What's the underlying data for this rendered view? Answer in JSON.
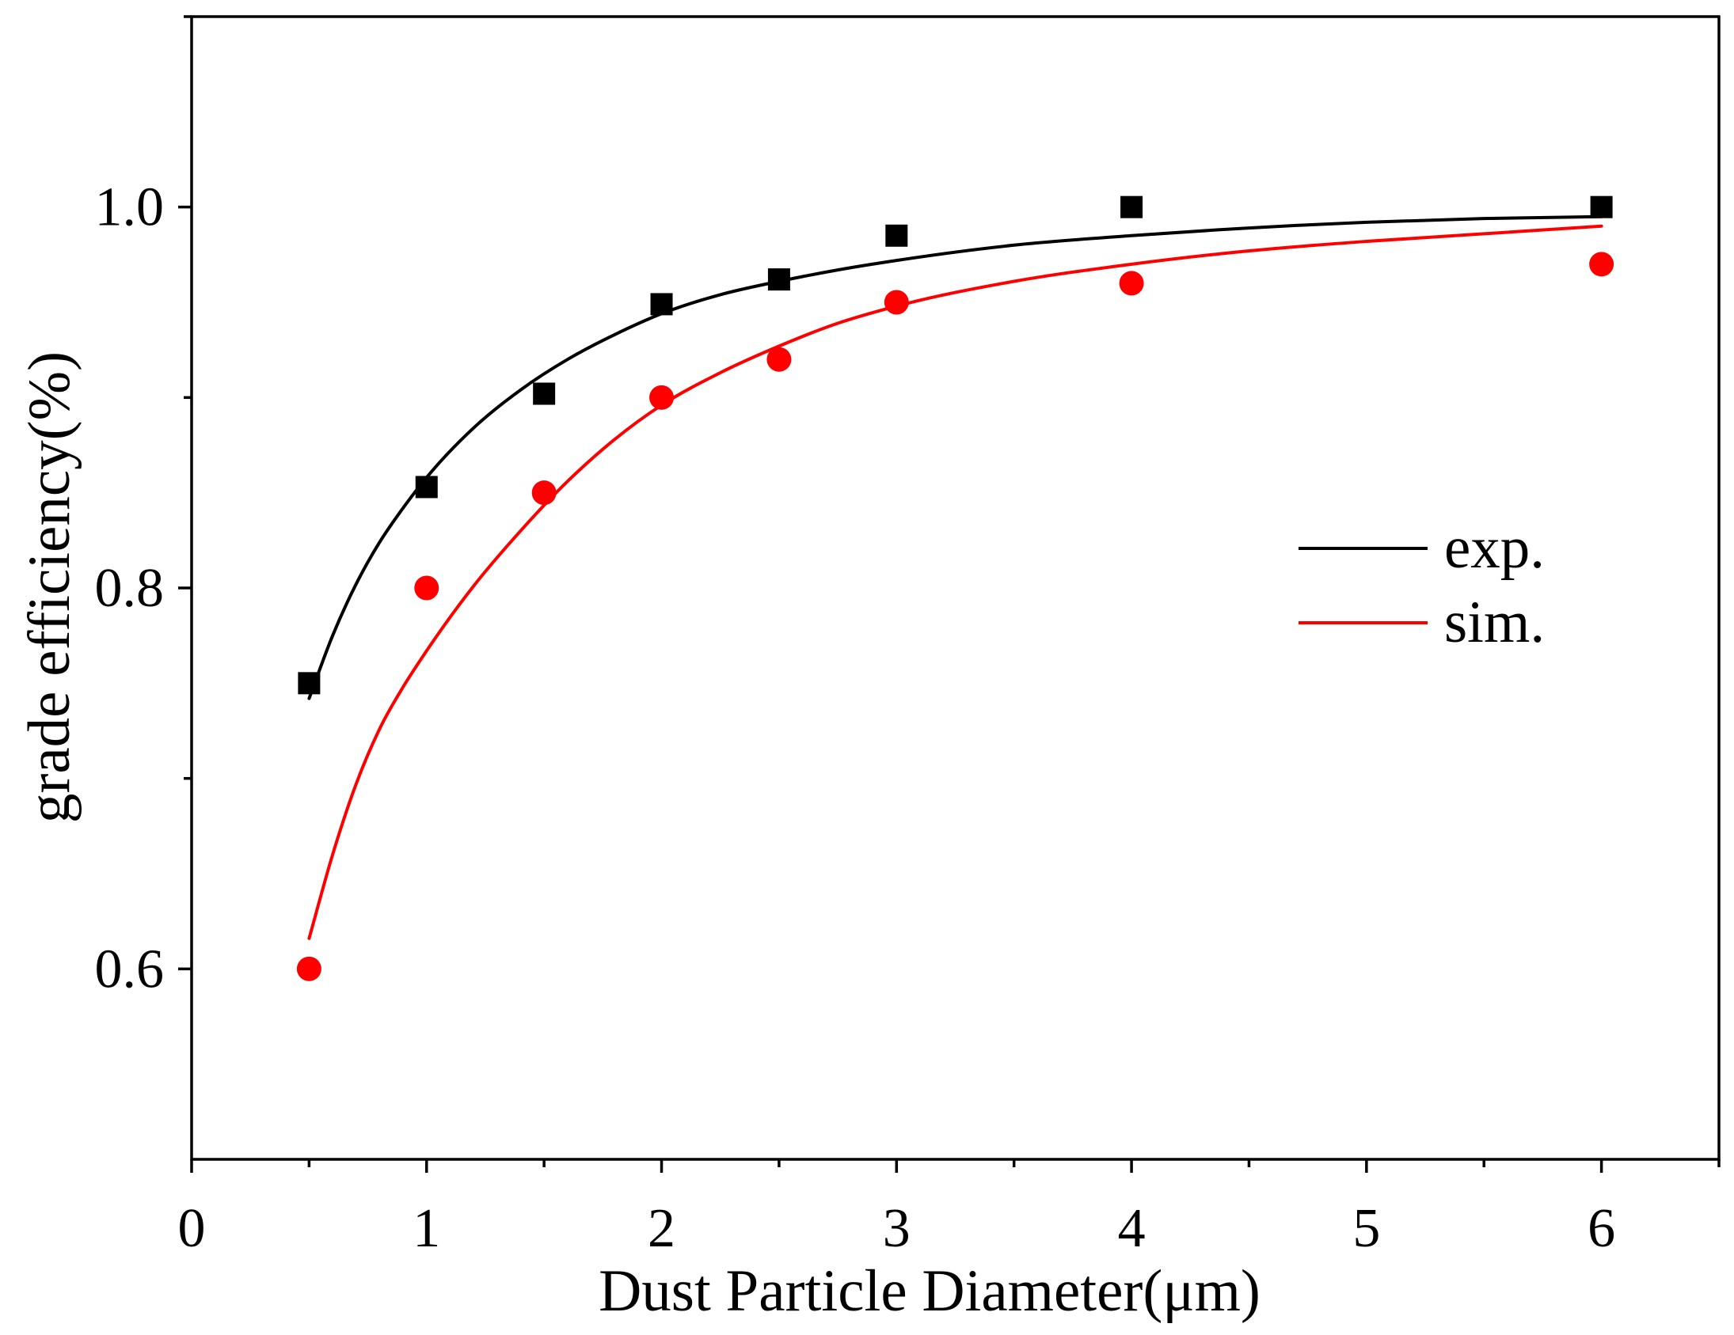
{
  "chart_data": {
    "type": "scatter",
    "xlabel": "Dust Particle Diameter(μm)",
    "ylabel": "grade efficiency(%)",
    "xlim": [
      0,
      6.5
    ],
    "ylim": [
      0.5,
      1.1
    ],
    "xticks": [
      0,
      1,
      2,
      3,
      4,
      5,
      6
    ],
    "xtick_labels": [
      "0",
      "1",
      "2",
      "3",
      "4",
      "5",
      "6"
    ],
    "x_minor_ticks": [
      0.5,
      1.5,
      2.5,
      3.5,
      4.5,
      5.5,
      6.5
    ],
    "yticks": [
      0.6,
      0.8,
      1.0
    ],
    "ytick_labels": [
      "0.6",
      "0.8",
      "1.0"
    ],
    "y_minor_ticks": [
      0.7,
      0.9,
      1.1
    ],
    "grid": false,
    "legend_position": "center-right",
    "series": [
      {
        "name": "exp.",
        "color": "#000000",
        "marker": "square",
        "x": [
          0.5,
          1,
          1.5,
          2,
          2.5,
          3,
          4,
          6
        ],
        "y": [
          0.75,
          0.853,
          0.902,
          0.949,
          0.962,
          0.985,
          1.0,
          1.0
        ],
        "fit_x": [
          0.5,
          0.6,
          0.7,
          0.8,
          0.9,
          1.0,
          1.2,
          1.4,
          1.6,
          1.8,
          2.0,
          2.25,
          2.5,
          2.75,
          3.0,
          3.5,
          4.0,
          4.5,
          5.0,
          5.5,
          6.0
        ],
        "fit_y": [
          0.742,
          0.775,
          0.802,
          0.824,
          0.842,
          0.858,
          0.884,
          0.904,
          0.92,
          0.933,
          0.944,
          0.954,
          0.961,
          0.967,
          0.972,
          0.98,
          0.985,
          0.989,
          0.992,
          0.994,
          0.995
        ]
      },
      {
        "name": "sim.",
        "color": "#ff0000",
        "marker": "circle",
        "x": [
          0.5,
          1,
          1.5,
          2,
          2.5,
          3,
          4,
          6
        ],
        "y": [
          0.6,
          0.8,
          0.85,
          0.9,
          0.92,
          0.95,
          0.96,
          0.97
        ],
        "fit_x": [
          0.5,
          0.6,
          0.7,
          0.8,
          0.9,
          1.0,
          1.2,
          1.4,
          1.6,
          1.8,
          2.0,
          2.25,
          2.5,
          2.75,
          3.0,
          3.5,
          4.0,
          4.5,
          5.0,
          5.5,
          6.0
        ],
        "fit_y": [
          0.616,
          0.66,
          0.697,
          0.726,
          0.748,
          0.767,
          0.801,
          0.83,
          0.856,
          0.878,
          0.896,
          0.913,
          0.927,
          0.939,
          0.948,
          0.961,
          0.97,
          0.977,
          0.982,
          0.986,
          0.99
        ]
      }
    ]
  }
}
